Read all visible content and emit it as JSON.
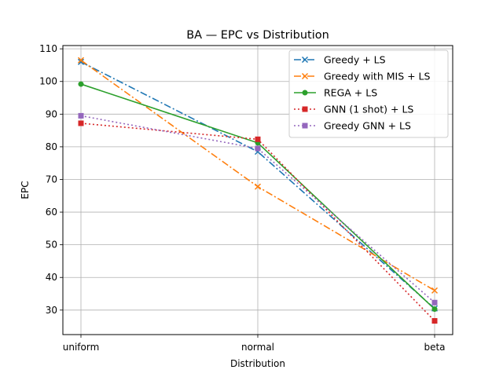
{
  "chart_data": {
    "type": "line",
    "title": "BA — EPC vs Distribution",
    "xlabel": "Distribution",
    "ylabel": "EPC",
    "categories": [
      "uniform",
      "normal",
      "beta"
    ],
    "ylim": [
      22.5,
      111
    ],
    "yticks": [
      30,
      40,
      50,
      60,
      70,
      80,
      90,
      100,
      110
    ],
    "grid": true,
    "legend_position": "upper-right",
    "series": [
      {
        "name": "Greedy + LS",
        "values": [
          106,
          78.5,
          30.5
        ],
        "color": "#1f77b4",
        "marker": "x",
        "dash": "dashdot"
      },
      {
        "name": "Greedy with MIS + LS",
        "values": [
          106.5,
          67.8,
          36
        ],
        "color": "#ff7f0e",
        "marker": "x",
        "dash": "dashdot"
      },
      {
        "name": "REGA + LS",
        "values": [
          99.2,
          81.2,
          30.3
        ],
        "color": "#2ca02c",
        "marker": "circle",
        "dash": "solid"
      },
      {
        "name": "GNN (1 shot) + LS",
        "values": [
          87.2,
          82.3,
          26.7
        ],
        "color": "#d62728",
        "marker": "square",
        "dash": "dotted"
      },
      {
        "name": "Greedy GNN + LS",
        "values": [
          89.5,
          79.5,
          32.3
        ],
        "color": "#9467bd",
        "marker": "square",
        "dash": "dotted"
      }
    ]
  }
}
